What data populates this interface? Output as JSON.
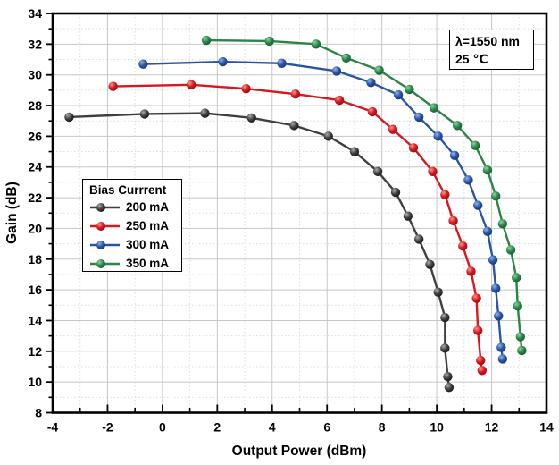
{
  "chart_data": {
    "type": "line",
    "title": "",
    "xlabel": "Output Power (dBm)",
    "ylabel": "Gain (dB)",
    "xlim": [
      -4,
      14
    ],
    "ylim": [
      8,
      34
    ],
    "x_ticks": [
      -4,
      -2,
      0,
      2,
      4,
      6,
      8,
      10,
      12,
      14
    ],
    "y_ticks": [
      8,
      10,
      12,
      14,
      16,
      18,
      20,
      22,
      24,
      26,
      28,
      30,
      32,
      34
    ],
    "minor_tick_step": 1,
    "grid": {
      "major": "solid",
      "minor": "dotted"
    },
    "legend_title": "Bias Currrent",
    "legend_position": "middle-left",
    "annotation": {
      "line1": "λ=1550 nm",
      "line2": "25 ℃"
    },
    "series": [
      {
        "name": "200 mA",
        "color": "#3f3f3f",
        "marker_light": "#ababab",
        "marker_dark": "#0d0d0d",
        "points": [
          [
            -3.4,
            27.25
          ],
          [
            -0.65,
            27.45
          ],
          [
            1.55,
            27.5
          ],
          [
            3.25,
            27.2
          ],
          [
            4.8,
            26.7
          ],
          [
            6.05,
            26.0
          ],
          [
            7.0,
            25.0
          ],
          [
            7.85,
            23.7
          ],
          [
            8.5,
            22.35
          ],
          [
            8.95,
            20.8
          ],
          [
            9.35,
            19.3
          ],
          [
            9.75,
            17.65
          ],
          [
            10.05,
            15.85
          ],
          [
            10.3,
            14.2
          ],
          [
            10.3,
            12.2
          ],
          [
            10.4,
            10.35
          ],
          [
            10.45,
            9.65
          ]
        ]
      },
      {
        "name": "250 mA",
        "color": "#d6181f",
        "marker_light": "#ff958c",
        "marker_dark": "#860a10",
        "points": [
          [
            -1.8,
            29.25
          ],
          [
            1.05,
            29.35
          ],
          [
            3.05,
            29.1
          ],
          [
            4.85,
            28.75
          ],
          [
            6.45,
            28.35
          ],
          [
            7.65,
            27.6
          ],
          [
            8.4,
            26.45
          ],
          [
            9.15,
            25.25
          ],
          [
            9.85,
            23.7
          ],
          [
            10.3,
            22.2
          ],
          [
            10.6,
            20.5
          ],
          [
            10.95,
            18.85
          ],
          [
            11.25,
            17.2
          ],
          [
            11.45,
            15.45
          ],
          [
            11.5,
            13.35
          ],
          [
            11.6,
            11.4
          ],
          [
            11.65,
            10.75
          ]
        ]
      },
      {
        "name": "300 mA",
        "color": "#2a55a5",
        "marker_light": "#8fb2e8",
        "marker_dark": "#132f6e",
        "points": [
          [
            -0.7,
            30.7
          ],
          [
            2.2,
            30.85
          ],
          [
            4.35,
            30.75
          ],
          [
            6.35,
            30.25
          ],
          [
            7.6,
            29.5
          ],
          [
            8.6,
            28.7
          ],
          [
            9.35,
            27.25
          ],
          [
            10.05,
            26.0
          ],
          [
            10.65,
            24.75
          ],
          [
            11.15,
            23.15
          ],
          [
            11.5,
            21.5
          ],
          [
            11.85,
            19.8
          ],
          [
            12.05,
            17.95
          ],
          [
            12.15,
            16.1
          ],
          [
            12.25,
            14.3
          ],
          [
            12.35,
            12.25
          ],
          [
            12.4,
            11.5
          ]
        ]
      },
      {
        "name": "350 mA",
        "color": "#2a8547",
        "marker_light": "#8fd3a2",
        "marker_dark": "#14512a",
        "points": [
          [
            1.6,
            32.25
          ],
          [
            3.9,
            32.2
          ],
          [
            5.6,
            32.0
          ],
          [
            6.7,
            31.1
          ],
          [
            7.9,
            30.3
          ],
          [
            9.0,
            29.05
          ],
          [
            9.9,
            27.85
          ],
          [
            10.75,
            26.7
          ],
          [
            11.4,
            25.4
          ],
          [
            11.85,
            23.8
          ],
          [
            12.15,
            22.1
          ],
          [
            12.4,
            20.3
          ],
          [
            12.7,
            18.6
          ],
          [
            12.9,
            16.8
          ],
          [
            12.95,
            14.95
          ],
          [
            13.05,
            12.95
          ],
          [
            13.1,
            12.05
          ]
        ]
      }
    ]
  }
}
